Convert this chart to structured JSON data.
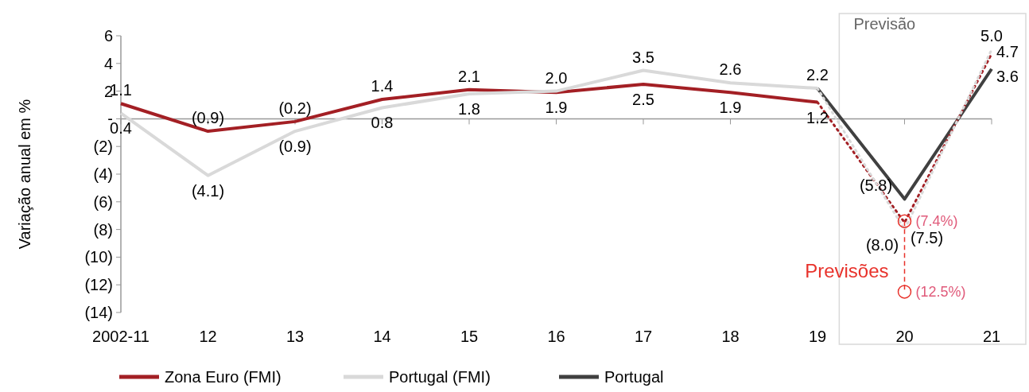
{
  "chart_data": {
    "type": "line",
    "ylabel": "Variação anual em %",
    "categories": [
      "2002-11",
      "12",
      "13",
      "14",
      "15",
      "16",
      "17",
      "18",
      "19",
      "20",
      "21"
    ],
    "ylim": [
      -14,
      6
    ],
    "yticks": [
      6,
      4,
      2,
      {
        "value": 0,
        "label": "-"
      },
      {
        "value": -2,
        "label": "(2)"
      },
      {
        "value": -4,
        "label": "(4)"
      },
      {
        "value": -6,
        "label": "(6)"
      },
      {
        "value": -8,
        "label": "(8)"
      },
      {
        "value": -10,
        "label": "(10)"
      },
      {
        "value": -12,
        "label": "(12)"
      },
      {
        "value": -14,
        "label": "(14)"
      }
    ],
    "legend": "bottom",
    "marker": "none",
    "line_style": "solid",
    "annotations": [
      "Previsão"
    ],
    "series": [
      {
        "name": "Zona Euro (FMI)",
        "color": "#a31f24",
        "values": [
          1.1,
          -0.9,
          -0.2,
          1.4,
          2.1,
          1.9,
          2.5,
          1.9,
          1.2,
          null,
          null
        ],
        "value_labels": [
          "1.1",
          "(0.9)",
          "(0.2)",
          "1.4",
          "2.1",
          "1.9",
          "2.5",
          "1.9",
          "1.2",
          null,
          null
        ]
      },
      {
        "name": "Portugal (FMI)",
        "color": "#d9d9d9",
        "values": [
          0.4,
          -4.1,
          -0.9,
          0.8,
          1.8,
          2.0,
          3.5,
          2.6,
          2.2,
          null,
          null
        ],
        "value_labels": [
          "0.4",
          "(4.1)",
          "(0.9)",
          "0.8",
          "1.8",
          "2.0",
          "3.5",
          "2.6",
          null,
          null,
          null
        ]
      },
      {
        "name": "Portugal",
        "color": "#404040",
        "values": [
          null,
          null,
          null,
          null,
          null,
          null,
          null,
          null,
          2.2,
          -5.8,
          3.6
        ],
        "value_labels": [
          null,
          null,
          null,
          null,
          null,
          null,
          null,
          null,
          "2.2",
          "(5.8)",
          "3.6"
        ]
      },
      {
        "color": "#a31f24",
        "line_style": "dotted",
        "values": [
          null,
          null,
          null,
          null,
          null,
          null,
          null,
          null,
          1.2,
          -7.5,
          4.7
        ],
        "value_labels": [
          null,
          null,
          null,
          null,
          null,
          null,
          null,
          null,
          null,
          "(7.5)",
          "4.7"
        ]
      },
      {
        "color": "#d9d9d9",
        "line_style": "dotted",
        "values": [
          null,
          null,
          null,
          null,
          null,
          null,
          null,
          null,
          2.2,
          -8.0,
          5.0
        ],
        "value_labels": [
          null,
          null,
          null,
          null,
          null,
          null,
          null,
          null,
          null,
          "(8.0)",
          "5.0"
        ]
      },
      {
        "name": "Previsões",
        "color": "#e8322b",
        "line_style": "dashed",
        "marker": "circle",
        "x": [
          "20",
          "20"
        ],
        "values": [
          -7.4,
          -12.5
        ],
        "value_labels": [
          "(7.4%)",
          "(12.5%)"
        ]
      }
    ]
  }
}
